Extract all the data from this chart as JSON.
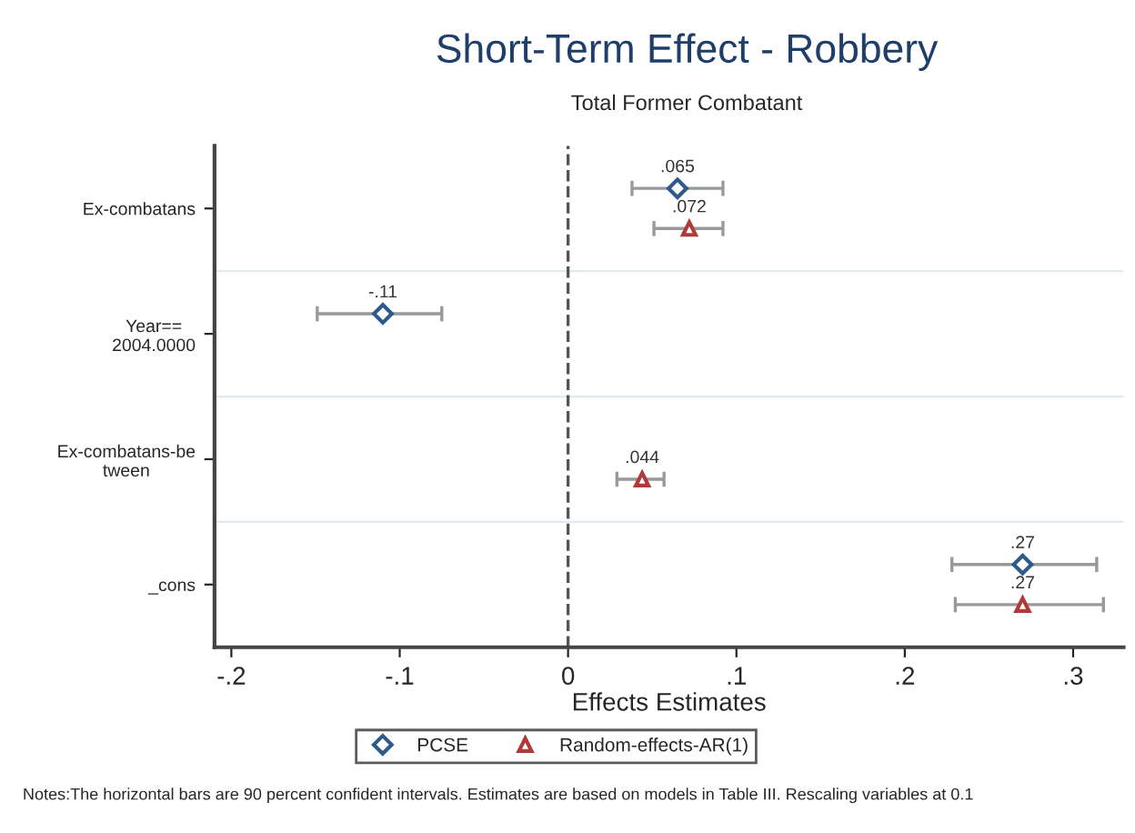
{
  "chart_data": {
    "type": "scatter",
    "orientation": "horizontal",
    "title": "Short-Term Effect - Robbery",
    "subtitle": "Total Former Combatant",
    "xlabel": "Effects Estimates",
    "categories": [
      "Ex-combatans",
      "Year==\n2004.0000",
      "Ex-combatans-be\ntween",
      "_cons"
    ],
    "series": [
      {
        "name": "PCSE",
        "color": "#2c5a8a",
        "marker": "diamond",
        "values": [
          0.065,
          -0.11,
          null,
          0.27
        ],
        "errors": [
          [
            0.038,
            0.092
          ],
          [
            -0.149,
            -0.075
          ],
          null,
          [
            0.228,
            0.314
          ]
        ],
        "value_labels": [
          ".065",
          "-.11",
          null,
          ".27"
        ]
      },
      {
        "name": "Random-effects-AR(1)",
        "color": "#b03a3a",
        "marker": "triangle",
        "values": [
          0.072,
          null,
          0.044,
          0.27
        ],
        "errors": [
          [
            0.051,
            0.092
          ],
          null,
          [
            0.029,
            0.057
          ],
          [
            0.23,
            0.318
          ]
        ],
        "value_labels": [
          ".072",
          null,
          ".044",
          ".27"
        ]
      }
    ],
    "xlim": [
      -0.21,
      0.33
    ],
    "xticks": [
      {
        "value": -0.2,
        "label": "-.2"
      },
      {
        "value": -0.1,
        "label": "-.1"
      },
      {
        "value": 0,
        "label": "0"
      },
      {
        "value": 0.1,
        "label": ".1"
      },
      {
        "value": 0.2,
        "label": ".2"
      },
      {
        "value": 0.3,
        "label": ".3"
      }
    ],
    "ref_lines": [
      {
        "axis": "x",
        "value": 0,
        "label": null,
        "color": "#555555",
        "line_style": "dashed"
      }
    ],
    "grid": "y",
    "legend": "bottom",
    "annotations": [
      "Notes:The horizontal bars are 90 percent confident intervals. Estimates are based on models in Table III. Rescaling variables at 0.1"
    ]
  }
}
